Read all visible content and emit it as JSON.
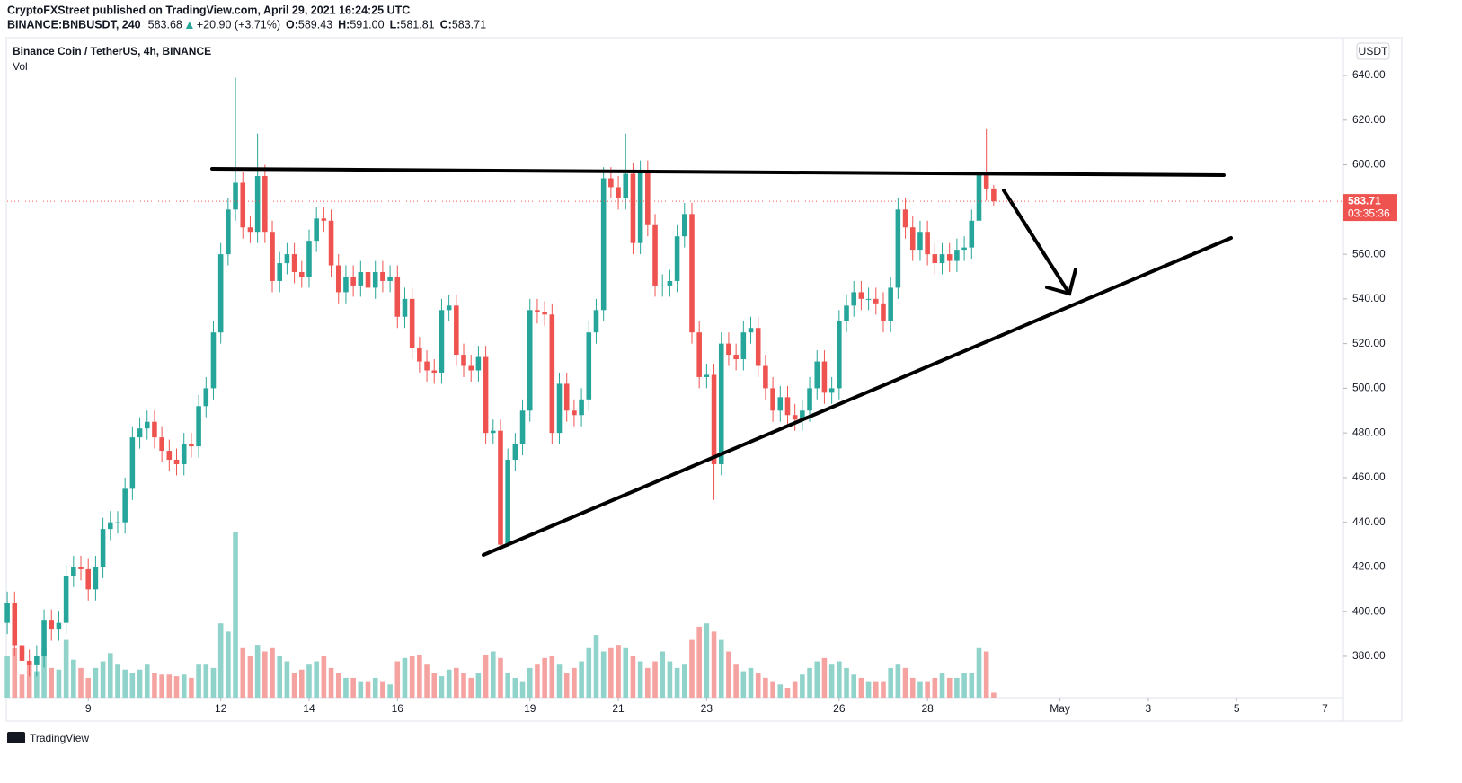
{
  "header": {
    "publisher": "CryptoFXStreet published on TradingView.com, April 29, 2021 16:24:25 UTC",
    "symbol": "BINANCE:BNBUSDT, 240",
    "last": "583.68",
    "change": "+20.90 (+3.71%)",
    "ohlc": [
      {
        "label": "O:",
        "value": "589.43"
      },
      {
        "label": "H:",
        "value": "591.00"
      },
      {
        "label": "L:",
        "value": "581.81"
      },
      {
        "label": "C:",
        "value": "583.71"
      }
    ],
    "footer": "TradingView"
  },
  "chart_data": {
    "type": "candlestick",
    "title": "Binance Coin / TetherUS, 4h, BINANCE",
    "volume_label": "Vol",
    "currency": "USDT",
    "countdown": "03:35:36",
    "up_color": "#26a69a",
    "down_color": "#ef5350",
    "volume_up_color": "#8fd3ca",
    "volume_down_color": "#f5a3a1",
    "open": [
      395,
      404,
      385,
      378,
      376,
      380,
      396,
      392,
      395,
      416,
      420,
      419,
      410,
      420,
      437,
      440,
      440,
      455,
      478,
      482,
      485,
      478,
      472,
      468,
      466,
      475,
      474,
      492,
      500,
      525,
      560,
      580,
      592,
      572,
      570,
      595,
      570,
      548,
      556,
      560,
      552,
      550,
      566,
      576,
      575,
      555,
      543,
      550,
      546,
      552,
      545,
      552,
      548,
      550,
      532,
      540,
      518,
      512,
      508,
      507,
      535,
      537,
      515,
      510,
      508,
      514,
      480,
      481,
      430,
      468,
      475,
      490,
      535,
      534,
      533,
      480,
      502,
      490,
      488,
      495,
      525,
      535,
      594,
      590,
      585,
      596,
      565,
      597,
      573,
      546,
      546,
      548,
      568,
      578,
      525,
      505,
      506,
      466,
      520,
      515,
      513,
      525,
      527,
      510,
      500,
      490,
      496,
      488,
      486,
      490,
      500,
      512,
      498,
      500,
      530,
      537,
      543,
      540,
      540,
      538,
      530,
      545,
      580,
      572,
      562,
      570,
      560,
      556,
      560,
      557,
      562,
      563,
      575,
      596,
      589.43
    ],
    "high": [
      409,
      409,
      390,
      383,
      385,
      401,
      401,
      400,
      421,
      425,
      425,
      424,
      425,
      442,
      445,
      445,
      460,
      483,
      487,
      490,
      490,
      483,
      477,
      473,
      480,
      480,
      497,
      505,
      530,
      565,
      585,
      639,
      597,
      577,
      614,
      600,
      575,
      561,
      565,
      565,
      557,
      571,
      581,
      581,
      580,
      560,
      555,
      555,
      557,
      557,
      557,
      557,
      555,
      555,
      545,
      545,
      523,
      517,
      513,
      540,
      542,
      542,
      520,
      515,
      519,
      519,
      486,
      486,
      473,
      480,
      495,
      540,
      540,
      539,
      538,
      507,
      507,
      495,
      500,
      530,
      540,
      599,
      599,
      595,
      614,
      601,
      602,
      602,
      578,
      551,
      553,
      573,
      583,
      583,
      530,
      511,
      511,
      525,
      525,
      520,
      530,
      532,
      532,
      515,
      505,
      501,
      501,
      493,
      495,
      505,
      517,
      517,
      505,
      535,
      542,
      548,
      548,
      545,
      545,
      543,
      550,
      585,
      585,
      577,
      575,
      575,
      565,
      565,
      565,
      567,
      568,
      580,
      601,
      616,
      591
    ],
    "low": [
      390,
      380,
      373,
      371,
      371,
      375,
      387,
      387,
      390,
      411,
      414,
      405,
      405,
      415,
      432,
      435,
      435,
      450,
      473,
      477,
      473,
      467,
      463,
      461,
      461,
      469,
      469,
      487,
      495,
      520,
      555,
      575,
      567,
      565,
      565,
      565,
      543,
      543,
      551,
      547,
      545,
      545,
      561,
      570,
      550,
      538,
      538,
      541,
      541,
      540,
      540,
      543,
      543,
      527,
      527,
      513,
      507,
      503,
      502,
      502,
      530,
      510,
      505,
      503,
      503,
      475,
      475,
      428,
      429,
      463,
      470,
      485,
      529,
      528,
      475,
      475,
      485,
      483,
      483,
      490,
      520,
      530,
      585,
      580,
      580,
      560,
      560,
      568,
      541,
      541,
      541,
      543,
      563,
      520,
      500,
      500,
      450,
      461,
      510,
      508,
      508,
      520,
      505,
      495,
      485,
      485,
      483,
      481,
      481,
      485,
      495,
      493,
      493,
      495,
      525,
      532,
      535,
      535,
      533,
      525,
      525,
      540,
      567,
      557,
      557,
      555,
      551,
      551,
      552,
      552,
      557,
      558,
      570,
      584,
      581.81
    ],
    "close": [
      404,
      385,
      378,
      376,
      380,
      396,
      392,
      395,
      416,
      420,
      419,
      410,
      420,
      437,
      440,
      440,
      455,
      478,
      482,
      485,
      478,
      472,
      468,
      466,
      475,
      474,
      492,
      500,
      525,
      560,
      580,
      592,
      572,
      570,
      595,
      570,
      548,
      556,
      560,
      552,
      550,
      566,
      576,
      575,
      555,
      543,
      550,
      546,
      552,
      545,
      552,
      548,
      550,
      532,
      540,
      518,
      512,
      508,
      507,
      535,
      537,
      515,
      510,
      508,
      514,
      480,
      481,
      430,
      468,
      475,
      490,
      535,
      534,
      533,
      480,
      502,
      490,
      488,
      495,
      525,
      535,
      594,
      590,
      585,
      596,
      565,
      597,
      573,
      546,
      546,
      548,
      568,
      578,
      525,
      505,
      506,
      466,
      520,
      515,
      513,
      525,
      527,
      510,
      500,
      490,
      496,
      488,
      486,
      490,
      500,
      512,
      498,
      500,
      530,
      537,
      543,
      540,
      540,
      538,
      530,
      545,
      580,
      572,
      562,
      570,
      560,
      556,
      560,
      557,
      562,
      563,
      575,
      596,
      589.43,
      583.71
    ],
    "volume": [
      25,
      30,
      14,
      20,
      16,
      30,
      18,
      17,
      35,
      23,
      18,
      12,
      18,
      22,
      27,
      20,
      17,
      15,
      17,
      20,
      15,
      14,
      14,
      13,
      14,
      12,
      20,
      20,
      18,
      45,
      40,
      100,
      30,
      25,
      32,
      28,
      30,
      25,
      22,
      15,
      17,
      20,
      22,
      25,
      18,
      15,
      12,
      12,
      10,
      10,
      12,
      10,
      8,
      22,
      24,
      25,
      26,
      20,
      15,
      13,
      17,
      18,
      15,
      12,
      15,
      26,
      28,
      24,
      15,
      12,
      10,
      18,
      20,
      24,
      25,
      20,
      15,
      18,
      22,
      30,
      38,
      28,
      30,
      32,
      30,
      25,
      22,
      18,
      22,
      28,
      22,
      18,
      20,
      35,
      43,
      45,
      40,
      35,
      28,
      20,
      16,
      18,
      15,
      12,
      10,
      8,
      6,
      10,
      14,
      18,
      22,
      24,
      20,
      22,
      18,
      14,
      12,
      10,
      10,
      10,
      18,
      20,
      18,
      12,
      10,
      10,
      12,
      15,
      12,
      12,
      15,
      15,
      30,
      28,
      3
    ],
    "xlim": [
      -0.5,
      181.5
    ],
    "xticks": [
      {
        "value": 11,
        "label": "9"
      },
      {
        "value": 29,
        "label": "12"
      },
      {
        "value": 41,
        "label": "14"
      },
      {
        "value": 53,
        "label": "16"
      },
      {
        "value": 71,
        "label": "19"
      },
      {
        "value": 83,
        "label": "21"
      },
      {
        "value": 95,
        "label": "23"
      },
      {
        "value": 113,
        "label": "26"
      },
      {
        "value": 125,
        "label": "28"
      },
      {
        "value": 143,
        "label": "May"
      },
      {
        "value": 155,
        "label": "3"
      },
      {
        "value": 167,
        "label": "5"
      },
      {
        "value": 179,
        "label": "7"
      }
    ],
    "ylim": [
      361.5,
      656.9
    ],
    "yticks": [
      {
        "value": 380,
        "label": "380.00"
      },
      {
        "value": 400,
        "label": "400.00"
      },
      {
        "value": 420,
        "label": "420.00"
      },
      {
        "value": 440,
        "label": "440.00"
      },
      {
        "value": 460,
        "label": "460.00"
      },
      {
        "value": 480,
        "label": "480.00"
      },
      {
        "value": 500,
        "label": "500.00"
      },
      {
        "value": 520,
        "label": "520.00"
      },
      {
        "value": 540,
        "label": "540.00"
      },
      {
        "value": 560,
        "label": "560.00"
      },
      {
        "value": 580,
        "label": "580.00"
      },
      {
        "value": 600,
        "label": "600.00"
      },
      {
        "value": 620,
        "label": "620.00"
      },
      {
        "value": 640,
        "label": "640.00"
      }
    ]
  }
}
